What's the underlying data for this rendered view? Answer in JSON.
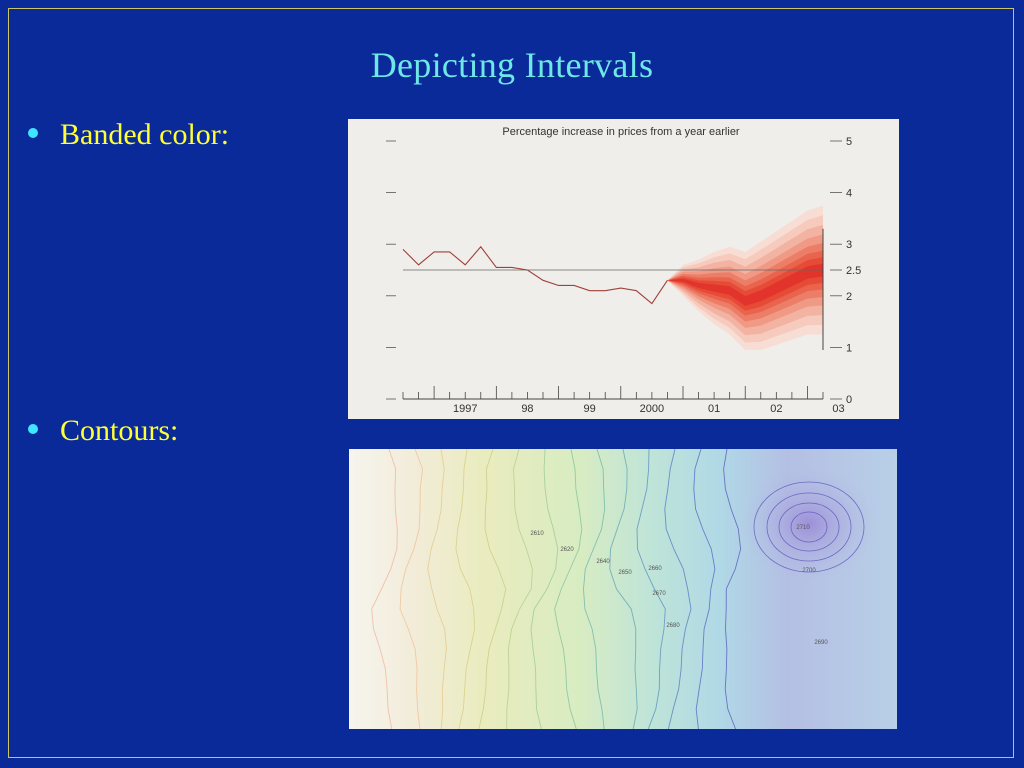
{
  "slide": {
    "title": "Depicting Intervals",
    "bullets": [
      "Banded color:",
      "Contours:"
    ]
  },
  "colors": {
    "background": "#0a2a9a",
    "title": "#6ee7e7",
    "bullet_text": "#ffff33",
    "bullet_dot": "#3ee6ff",
    "frame": "#c9c36a",
    "fan_band": "#e8322a"
  },
  "chart_data": [
    {
      "type": "line",
      "title": "Percentage increase in prices from a year earlier",
      "x_tick_labels": [
        "1997",
        "98",
        "99",
        "2000",
        "01",
        "02",
        "03"
      ],
      "x_tick_values": [
        1997,
        1998,
        1999,
        2000,
        2001,
        2002,
        2003
      ],
      "y_tick_labels": [
        "0",
        "1",
        "2",
        "2.5",
        "3",
        "4",
        "5"
      ],
      "y_tick_values": [
        0,
        1,
        2,
        2.5,
        3,
        4,
        5
      ],
      "ylim": [
        0,
        5
      ],
      "xlim": [
        1996.5,
        2003.25
      ],
      "reference_line": 2.5,
      "grid": false,
      "series": [
        {
          "x": [
            1996.5,
            1996.75,
            1997.0,
            1997.25,
            1997.5,
            1997.75,
            1998.0,
            1998.25,
            1998.5,
            1998.75,
            1999.0,
            1999.25,
            1999.5,
            1999.75,
            2000.0,
            2000.25,
            2000.5,
            2000.75
          ],
          "y": [
            2.9,
            2.6,
            2.85,
            2.85,
            2.6,
            2.95,
            2.55,
            2.55,
            2.5,
            2.3,
            2.2,
            2.2,
            2.1,
            2.1,
            2.15,
            2.1,
            1.85,
            2.3
          ]
        }
      ],
      "fan": {
        "x": [
          2000.75,
          2001.0,
          2001.25,
          2001.5,
          2001.75,
          2002.0,
          2002.25,
          2002.5,
          2002.75,
          2003.0,
          2003.25
        ],
        "central": [
          2.3,
          2.3,
          2.2,
          2.15,
          2.1,
          1.9,
          2.0,
          2.15,
          2.3,
          2.45,
          2.5
        ],
        "half_width_outer": [
          0.0,
          0.3,
          0.5,
          0.7,
          0.85,
          0.95,
          1.05,
          1.1,
          1.15,
          1.2,
          1.25
        ]
      }
    },
    {
      "type": "contour",
      "contour_labels": [
        "2610",
        "2620",
        "2640",
        "2650",
        "2660",
        "2670",
        "2680",
        "2710",
        "2700",
        "2690"
      ]
    }
  ]
}
